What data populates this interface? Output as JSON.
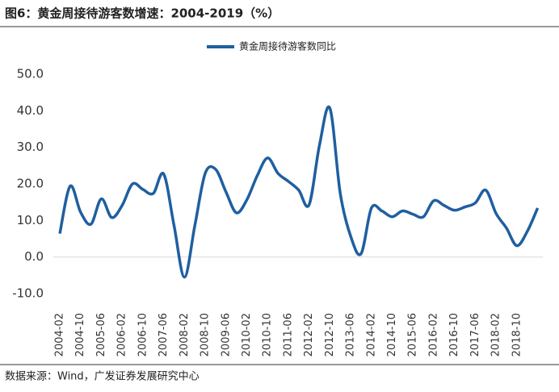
{
  "chart_data": {
    "type": "line",
    "title": "图6：黄金周接待游客数增速：2004-2019（%）",
    "source": "数据来源：Wind，广发证券发展研究中心",
    "categories": [
      "2004-02",
      null,
      "2004-10",
      null,
      "2005-06",
      null,
      "2006-02",
      null,
      "2006-10",
      null,
      "2007-06",
      null,
      "2008-02",
      null,
      "2008-10",
      null,
      "2009-06",
      null,
      "2010-02",
      null,
      "2010-10",
      null,
      "2011-06",
      null,
      "2012-02",
      null,
      "2012-10",
      null,
      "2013-06",
      null,
      "2014-02",
      null,
      "2014-10",
      null,
      "2015-06",
      null,
      "2016-02",
      null,
      "2016-10",
      null,
      "2017-06",
      null,
      "2018-02",
      null,
      "2018-10",
      null,
      null
    ],
    "series": [
      {
        "name": "黄金周接待游客数同比",
        "color": "#1f5fa0",
        "values": [
          6.4,
          19.4,
          12.3,
          9.0,
          15.9,
          10.8,
          14.1,
          20.0,
          18.5,
          17.4,
          22.7,
          8.6,
          -5.5,
          8.6,
          22.9,
          24.0,
          17.8,
          12.1,
          15.6,
          22.2,
          27.1,
          22.9,
          20.7,
          18.3,
          14.3,
          30.6,
          40.7,
          17.4,
          5.7,
          0.9,
          13.4,
          12.6,
          11.0,
          12.6,
          11.7,
          11.0,
          15.4,
          14.1,
          12.8,
          13.7,
          14.8,
          18.3,
          11.9,
          7.9,
          3.1,
          7.0,
          13.4
        ]
      }
    ],
    "ylim": [
      -10,
      50
    ],
    "yticks": [
      {
        "value": -10,
        "label": "-10.0"
      },
      {
        "value": 0,
        "label": "0.0"
      },
      {
        "value": 10,
        "label": "10.0"
      },
      {
        "value": 20,
        "label": "20.0"
      },
      {
        "value": 30,
        "label": "30.0"
      },
      {
        "value": 40,
        "label": "40.0"
      },
      {
        "value": 50,
        "label": "50.0"
      }
    ],
    "legend": "top"
  }
}
